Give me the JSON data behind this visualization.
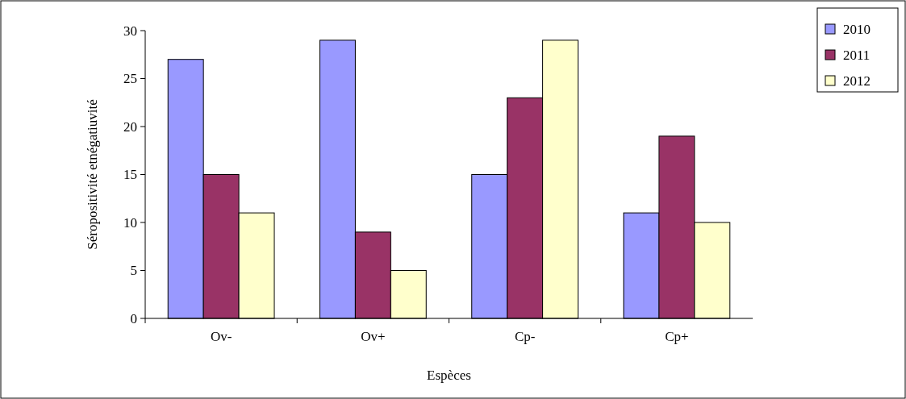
{
  "chart_data": {
    "type": "bar",
    "xlabel": "Espèces",
    "ylabel": "Séropositivité etnégatiuvité",
    "categories": [
      "Ov-",
      "Ov+",
      "Cp-",
      "Cp+"
    ],
    "series": [
      {
        "name": "2010",
        "color": "#9999ff",
        "values": [
          27,
          29,
          15,
          11
        ]
      },
      {
        "name": "2011",
        "color": "#993366",
        "values": [
          15,
          9,
          23,
          19
        ]
      },
      {
        "name": "2012",
        "color": "#ffffcc",
        "values": [
          11,
          5,
          29,
          10
        ]
      }
    ],
    "ylim": [
      0,
      30
    ],
    "yticks": [
      0,
      5,
      10,
      15,
      20,
      25,
      30
    ],
    "grid": false,
    "legend": "top right"
  }
}
